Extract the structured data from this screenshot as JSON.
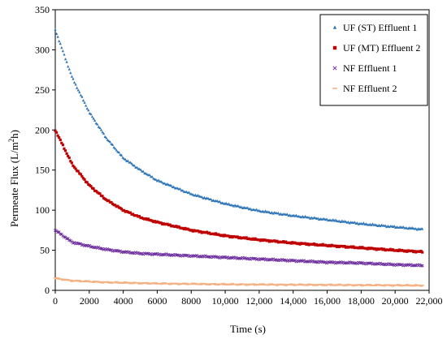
{
  "chart_data": {
    "type": "scatter",
    "xlabel": "Time (s)",
    "ylabel_parts": [
      "Permeate Flux (L/m",
      "2",
      "h)"
    ],
    "xlim": [
      0,
      22000
    ],
    "ylim": [
      0,
      350
    ],
    "xticks": [
      0,
      2000,
      4000,
      6000,
      8000,
      10000,
      12000,
      14000,
      16000,
      18000,
      20000,
      22000
    ],
    "xtick_labels": [
      "0",
      "2000",
      "4000",
      "6000",
      "8000",
      "10,000",
      "12,000",
      "14,000",
      "16,000",
      "18,000",
      "20,000",
      "22,000"
    ],
    "yticks": [
      0,
      50,
      100,
      150,
      200,
      250,
      300,
      350
    ],
    "ytick_labels": [
      "0",
      "50",
      "100",
      "150",
      "200",
      "250",
      "300",
      "350"
    ],
    "grid": false,
    "legend_position": "top-right",
    "series": [
      {
        "name": "UF (ST) Effluent 1",
        "color": "#2e75b6",
        "marker": "triangle",
        "x": [
          0,
          1000,
          2000,
          3000,
          4000,
          5000,
          6000,
          8000,
          10000,
          12000,
          14000,
          16000,
          18000,
          20000,
          21600
        ],
        "y": [
          325,
          265,
          222,
          190,
          165,
          150,
          137,
          120,
          108,
          99,
          93,
          88,
          83,
          79,
          76
        ]
      },
      {
        "name": "UF (MT) Effluent 2",
        "color": "#c00000",
        "marker": "square",
        "x": [
          0,
          1000,
          2000,
          3000,
          4000,
          5000,
          6000,
          8000,
          10000,
          12000,
          14000,
          16000,
          18000,
          20000,
          21600
        ],
        "y": [
          200,
          157,
          131,
          113,
          100,
          91,
          85,
          75,
          68,
          63,
          59,
          56,
          53,
          50,
          48
        ]
      },
      {
        "name": "NF Effluent 1",
        "color": "#7030a0",
        "marker": "cross",
        "x": [
          0,
          1000,
          2000,
          3000,
          4000,
          5000,
          6000,
          8000,
          10000,
          12000,
          14000,
          16000,
          18000,
          20000,
          21600
        ],
        "y": [
          75,
          60,
          55,
          51,
          48,
          46,
          45,
          43,
          41,
          39,
          37,
          35,
          34,
          32,
          31
        ]
      },
      {
        "name": "NF Effluent 2",
        "color": "#f4b183",
        "marker": "dash",
        "x": [
          0,
          1000,
          2000,
          3000,
          4000,
          5000,
          6000,
          8000,
          10000,
          12000,
          14000,
          16000,
          18000,
          20000,
          21600
        ],
        "y": [
          15,
          12,
          11,
          10,
          9.5,
          9,
          8.5,
          8,
          7.5,
          7.2,
          7,
          6.8,
          6.5,
          6.3,
          6
        ]
      }
    ]
  }
}
